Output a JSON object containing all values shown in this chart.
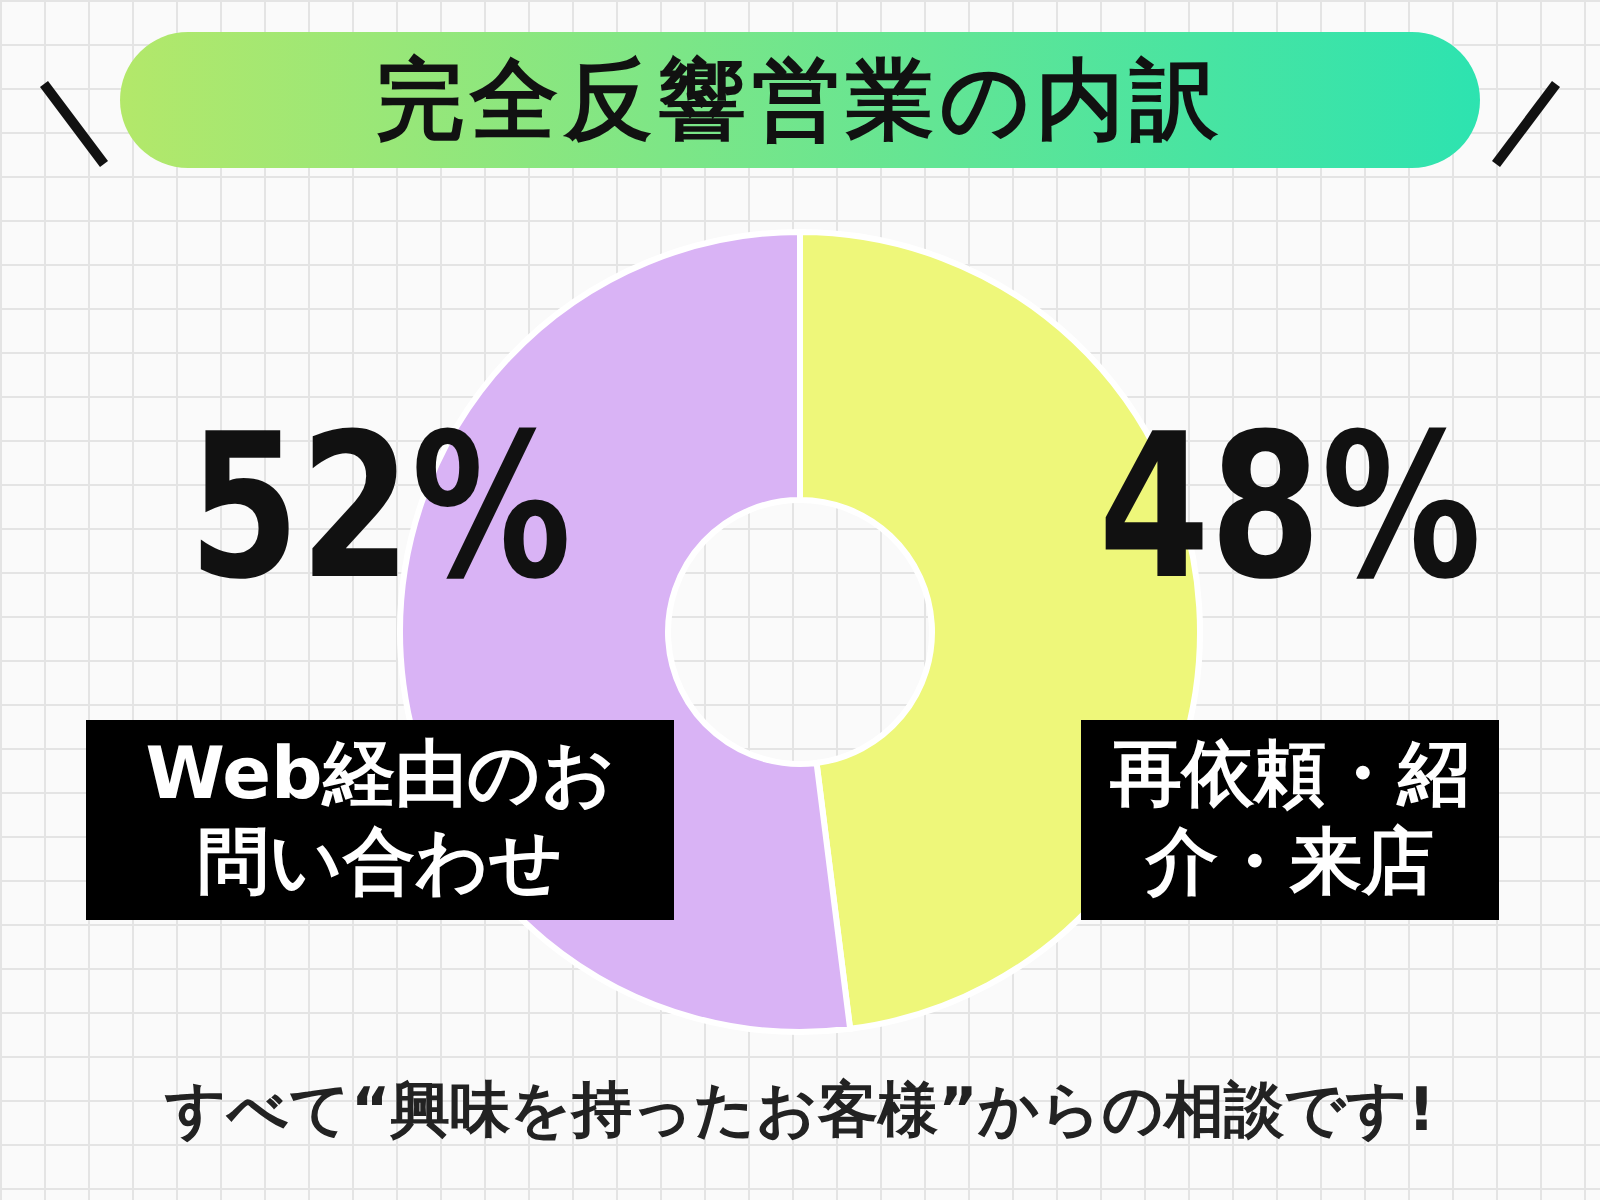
{
  "chart_data": {
    "type": "donut",
    "title": "完全反響営業の内訳",
    "categories": [
      "再依頼・紹介・来店",
      "Web経由のお問い合わせ"
    ],
    "values": [
      48,
      52
    ],
    "colors": [
      "#eef77a",
      "#d9b3f5"
    ],
    "value_labels": [
      "48%",
      "52%"
    ],
    "annotations": [
      "すべて“興味を持ったお客様”からの相談です!"
    ]
  }
}
